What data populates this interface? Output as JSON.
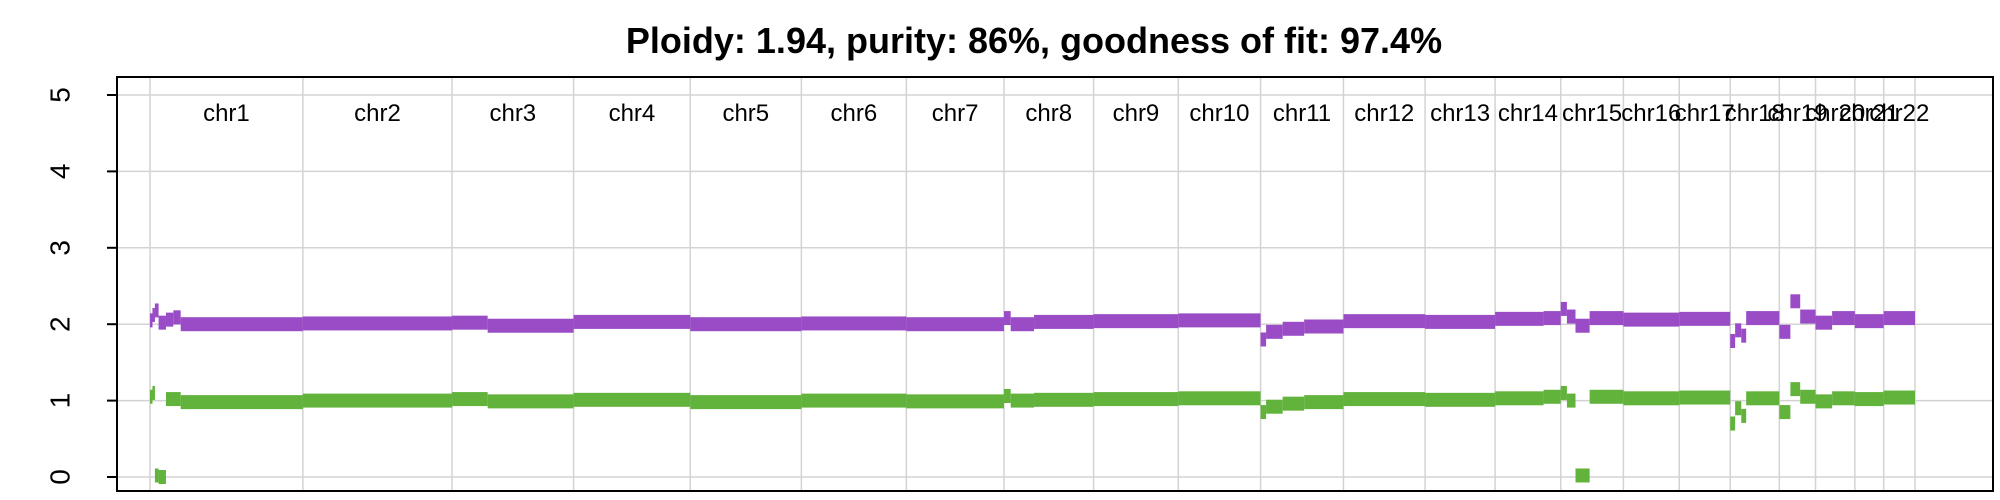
{
  "chart_data": {
    "type": "line",
    "title": "Ploidy: 1.94, purity: 86%, goodness of fit: 97.4%",
    "xlabel": "",
    "ylabel": "",
    "ylim": [
      0,
      5
    ],
    "y_ticks": [
      "0",
      "1",
      "2",
      "3",
      "4",
      "5"
    ],
    "grid": true,
    "x_units": "Mb (cumulative genome position)",
    "chromosomes": [
      {
        "label": "chr1",
        "start": 0,
        "end": 249
      },
      {
        "label": "chr2",
        "start": 249,
        "end": 492
      },
      {
        "label": "chr3",
        "start": 492,
        "end": 690
      },
      {
        "label": "chr4",
        "start": 690,
        "end": 880
      },
      {
        "label": "chr5",
        "start": 880,
        "end": 1061
      },
      {
        "label": "chr6",
        "start": 1061,
        "end": 1232
      },
      {
        "label": "chr7",
        "start": 1232,
        "end": 1391
      },
      {
        "label": "chr8",
        "start": 1391,
        "end": 1537
      },
      {
        "label": "chr9",
        "start": 1537,
        "end": 1675
      },
      {
        "label": "chr10",
        "start": 1675,
        "end": 1809
      },
      {
        "label": "chr11",
        "start": 1809,
        "end": 1944
      },
      {
        "label": "chr12",
        "start": 1944,
        "end": 2077
      },
      {
        "label": "chr13",
        "start": 2077,
        "end": 2191
      },
      {
        "label": "chr14",
        "start": 2191,
        "end": 2298
      },
      {
        "label": "chr15",
        "start": 2298,
        "end": 2400
      },
      {
        "label": "chr16",
        "start": 2400,
        "end": 2491
      },
      {
        "label": "chr17",
        "start": 2491,
        "end": 2574
      },
      {
        "label": "chr18",
        "start": 2574,
        "end": 2654
      },
      {
        "label": "chr19",
        "start": 2654,
        "end": 2713
      },
      {
        "label": "chr20",
        "start": 2713,
        "end": 2777
      },
      {
        "label": "chr21",
        "start": 2777,
        "end": 2824
      },
      {
        "label": "chr22",
        "start": 2824,
        "end": 2875
      }
    ],
    "series": [
      {
        "color": "#9a4cc6",
        "segments": [
          [
            0,
            4,
            2.05
          ],
          [
            4,
            8,
            2.12
          ],
          [
            8,
            14,
            2.18
          ],
          [
            14,
            26,
            2.02
          ],
          [
            26,
            38,
            2.06
          ],
          [
            38,
            50,
            2.09
          ],
          [
            50,
            249,
            2.0
          ],
          [
            249,
            492,
            2.01
          ],
          [
            492,
            550,
            2.02
          ],
          [
            550,
            690,
            1.98
          ],
          [
            690,
            880,
            2.03
          ],
          [
            880,
            1061,
            2.0
          ],
          [
            1061,
            1232,
            2.01
          ],
          [
            1232,
            1391,
            2.0
          ],
          [
            1391,
            1402,
            2.08
          ],
          [
            1402,
            1440,
            2.0
          ],
          [
            1440,
            1537,
            2.03
          ],
          [
            1537,
            1675,
            2.04
          ],
          [
            1675,
            1809,
            2.05
          ],
          [
            1809,
            1818,
            1.8
          ],
          [
            1818,
            1845,
            1.9
          ],
          [
            1845,
            1880,
            1.94
          ],
          [
            1880,
            1944,
            1.97
          ],
          [
            1944,
            2077,
            2.04
          ],
          [
            2077,
            2191,
            2.03
          ],
          [
            2191,
            2270,
            2.07
          ],
          [
            2270,
            2298,
            2.08
          ],
          [
            2298,
            2308,
            2.2
          ],
          [
            2308,
            2322,
            2.1
          ],
          [
            2322,
            2345,
            1.98
          ],
          [
            2345,
            2400,
            2.08
          ],
          [
            2400,
            2491,
            2.06
          ],
          [
            2491,
            2574,
            2.07
          ],
          [
            2574,
            2582,
            1.78
          ],
          [
            2582,
            2592,
            1.92
          ],
          [
            2592,
            2600,
            1.85
          ],
          [
            2600,
            2654,
            2.08
          ],
          [
            2654,
            2672,
            1.9
          ],
          [
            2672,
            2688,
            2.3
          ],
          [
            2688,
            2713,
            2.1
          ],
          [
            2713,
            2740,
            2.02
          ],
          [
            2740,
            2777,
            2.08
          ],
          [
            2777,
            2824,
            2.04
          ],
          [
            2824,
            2875,
            2.08
          ]
        ]
      },
      {
        "color": "#62b33c",
        "segments": [
          [
            0,
            4,
            1.05
          ],
          [
            4,
            8,
            1.1
          ],
          [
            8,
            14,
            0.02
          ],
          [
            14,
            26,
            0.0
          ],
          [
            26,
            50,
            1.02
          ],
          [
            50,
            249,
            0.98
          ],
          [
            249,
            492,
            1.0
          ],
          [
            492,
            550,
            1.02
          ],
          [
            550,
            690,
            0.99
          ],
          [
            690,
            880,
            1.01
          ],
          [
            880,
            1061,
            0.98
          ],
          [
            1061,
            1232,
            1.0
          ],
          [
            1232,
            1391,
            0.99
          ],
          [
            1391,
            1402,
            1.06
          ],
          [
            1402,
            1440,
            1.0
          ],
          [
            1440,
            1537,
            1.01
          ],
          [
            1537,
            1675,
            1.02
          ],
          [
            1675,
            1809,
            1.03
          ],
          [
            1809,
            1818,
            0.85
          ],
          [
            1818,
            1845,
            0.92
          ],
          [
            1845,
            1880,
            0.96
          ],
          [
            1880,
            1944,
            0.98
          ],
          [
            1944,
            2077,
            1.02
          ],
          [
            2077,
            2191,
            1.01
          ],
          [
            2191,
            2270,
            1.03
          ],
          [
            2270,
            2298,
            1.05
          ],
          [
            2298,
            2308,
            1.1
          ],
          [
            2308,
            2322,
            1.0
          ],
          [
            2322,
            2345,
            0.02
          ],
          [
            2345,
            2400,
            1.05
          ],
          [
            2400,
            2491,
            1.03
          ],
          [
            2491,
            2574,
            1.04
          ],
          [
            2574,
            2582,
            0.7
          ],
          [
            2582,
            2592,
            0.9
          ],
          [
            2592,
            2600,
            0.8
          ],
          [
            2600,
            2654,
            1.03
          ],
          [
            2654,
            2672,
            0.85
          ],
          [
            2672,
            2688,
            1.15
          ],
          [
            2688,
            2713,
            1.05
          ],
          [
            2713,
            2740,
            0.99
          ],
          [
            2740,
            2777,
            1.03
          ],
          [
            2777,
            2824,
            1.02
          ],
          [
            2824,
            2875,
            1.04
          ]
        ]
      }
    ]
  }
}
